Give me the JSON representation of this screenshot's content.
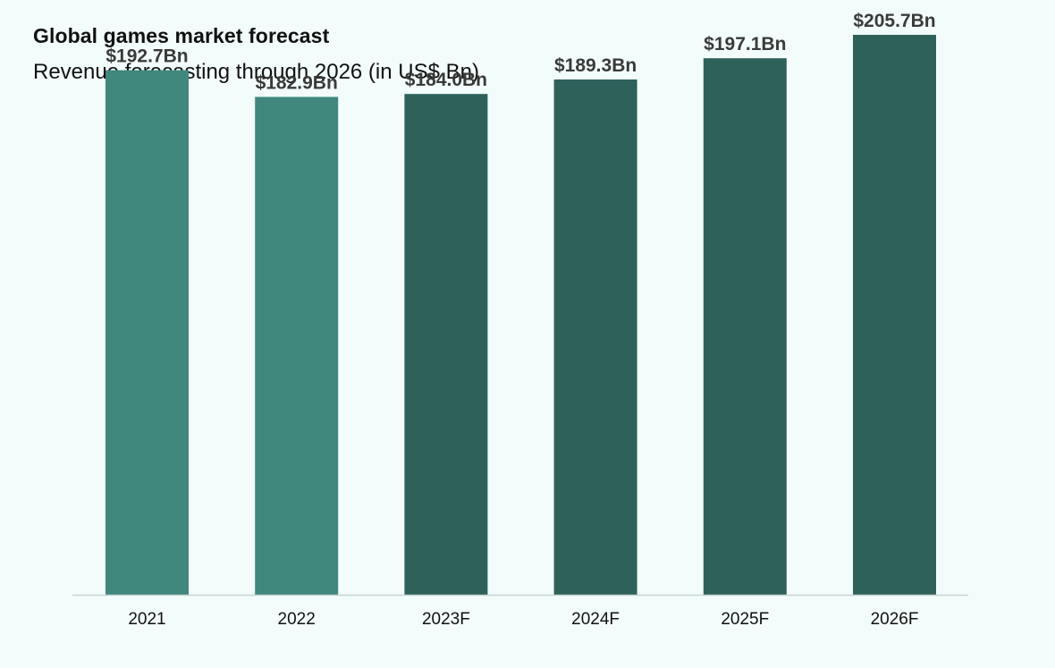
{
  "chart_data": {
    "type": "bar",
    "title": "Global games market forecast",
    "subtitle": "Revenue forecasting through 2026 (in US$ Bn)",
    "xlabel": "",
    "ylabel": "",
    "ylim": [
      0,
      220
    ],
    "grid": false,
    "categories": [
      "2021",
      "2022",
      "2023F",
      "2024F",
      "2025F",
      "2026F"
    ],
    "values": [
      192.7,
      182.9,
      184.0,
      189.3,
      197.1,
      205.7
    ],
    "value_labels": [
      "$192.7Bn",
      "$182.9Bn",
      "$184.0Bn",
      "$189.3Bn",
      "$197.1Bn",
      "$205.7Bn"
    ],
    "bar_colors": [
      "#40877e",
      "#40877e",
      "#2f615b",
      "#2f615b",
      "#2f615b",
      "#2f615b"
    ]
  },
  "colors": {
    "background": "#f2fdfb",
    "actual": "#40877e",
    "forecast": "#2f615b",
    "baseline": "#c9d4d2"
  }
}
